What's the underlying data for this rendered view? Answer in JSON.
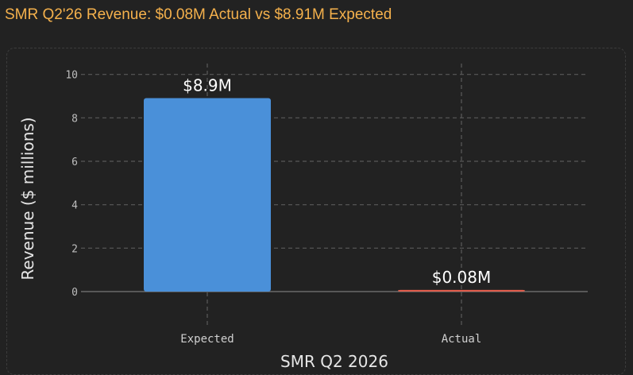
{
  "title": "SMR Q2'26 Revenue: $0.08M Actual vs $8.91M Expected",
  "colors": {
    "background": "#222222",
    "title": "#f5b14c",
    "expected": "#4a90d9",
    "actual": "#e05c4b",
    "grid": "#5a5a5a"
  },
  "chart_data": {
    "type": "bar",
    "categories": [
      "Expected",
      "Actual"
    ],
    "values": [
      8.91,
      0.08
    ],
    "data_labels": [
      "$8.9M",
      "$0.08M"
    ],
    "title": "SMR Q2'26 Revenue: $0.08M Actual vs $8.91M Expected",
    "xlabel": "SMR Q2 2026",
    "ylabel": "Revenue ($ millions)",
    "ylim": [
      0,
      10.5
    ],
    "yticks": [
      0,
      2,
      4,
      6,
      8,
      10
    ],
    "grid": true
  }
}
